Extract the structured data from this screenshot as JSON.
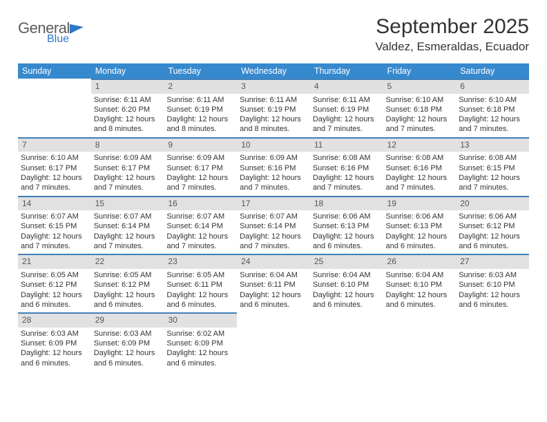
{
  "brand": {
    "general": "General",
    "blue": "Blue"
  },
  "title": "September 2025",
  "location": "Valdez, Esmeraldas, Ecuador",
  "colors": {
    "header_bg": "#3789ce",
    "daynum_bg": "#e1e1e1",
    "daynum_border": "#3e7fb8",
    "text": "#333333",
    "logo_gray": "#5b5b5b",
    "logo_blue": "#2f78c4",
    "page_bg": "#ffffff"
  },
  "typography": {
    "title_fontsize": 30,
    "location_fontsize": 17,
    "dayheader_fontsize": 12.5,
    "cell_fontsize": 11
  },
  "day_headers": [
    "Sunday",
    "Monday",
    "Tuesday",
    "Wednesday",
    "Thursday",
    "Friday",
    "Saturday"
  ],
  "weeks": [
    [
      {
        "n": "",
        "sr": "",
        "ss": "",
        "dl": ""
      },
      {
        "n": "1",
        "sr": "Sunrise: 6:11 AM",
        "ss": "Sunset: 6:20 PM",
        "dl": "Daylight: 12 hours and 8 minutes."
      },
      {
        "n": "2",
        "sr": "Sunrise: 6:11 AM",
        "ss": "Sunset: 6:19 PM",
        "dl": "Daylight: 12 hours and 8 minutes."
      },
      {
        "n": "3",
        "sr": "Sunrise: 6:11 AM",
        "ss": "Sunset: 6:19 PM",
        "dl": "Daylight: 12 hours and 8 minutes."
      },
      {
        "n": "4",
        "sr": "Sunrise: 6:11 AM",
        "ss": "Sunset: 6:19 PM",
        "dl": "Daylight: 12 hours and 7 minutes."
      },
      {
        "n": "5",
        "sr": "Sunrise: 6:10 AM",
        "ss": "Sunset: 6:18 PM",
        "dl": "Daylight: 12 hours and 7 minutes."
      },
      {
        "n": "6",
        "sr": "Sunrise: 6:10 AM",
        "ss": "Sunset: 6:18 PM",
        "dl": "Daylight: 12 hours and 7 minutes."
      }
    ],
    [
      {
        "n": "7",
        "sr": "Sunrise: 6:10 AM",
        "ss": "Sunset: 6:17 PM",
        "dl": "Daylight: 12 hours and 7 minutes."
      },
      {
        "n": "8",
        "sr": "Sunrise: 6:09 AM",
        "ss": "Sunset: 6:17 PM",
        "dl": "Daylight: 12 hours and 7 minutes."
      },
      {
        "n": "9",
        "sr": "Sunrise: 6:09 AM",
        "ss": "Sunset: 6:17 PM",
        "dl": "Daylight: 12 hours and 7 minutes."
      },
      {
        "n": "10",
        "sr": "Sunrise: 6:09 AM",
        "ss": "Sunset: 6:16 PM",
        "dl": "Daylight: 12 hours and 7 minutes."
      },
      {
        "n": "11",
        "sr": "Sunrise: 6:08 AM",
        "ss": "Sunset: 6:16 PM",
        "dl": "Daylight: 12 hours and 7 minutes."
      },
      {
        "n": "12",
        "sr": "Sunrise: 6:08 AM",
        "ss": "Sunset: 6:16 PM",
        "dl": "Daylight: 12 hours and 7 minutes."
      },
      {
        "n": "13",
        "sr": "Sunrise: 6:08 AM",
        "ss": "Sunset: 6:15 PM",
        "dl": "Daylight: 12 hours and 7 minutes."
      }
    ],
    [
      {
        "n": "14",
        "sr": "Sunrise: 6:07 AM",
        "ss": "Sunset: 6:15 PM",
        "dl": "Daylight: 12 hours and 7 minutes."
      },
      {
        "n": "15",
        "sr": "Sunrise: 6:07 AM",
        "ss": "Sunset: 6:14 PM",
        "dl": "Daylight: 12 hours and 7 minutes."
      },
      {
        "n": "16",
        "sr": "Sunrise: 6:07 AM",
        "ss": "Sunset: 6:14 PM",
        "dl": "Daylight: 12 hours and 7 minutes."
      },
      {
        "n": "17",
        "sr": "Sunrise: 6:07 AM",
        "ss": "Sunset: 6:14 PM",
        "dl": "Daylight: 12 hours and 7 minutes."
      },
      {
        "n": "18",
        "sr": "Sunrise: 6:06 AM",
        "ss": "Sunset: 6:13 PM",
        "dl": "Daylight: 12 hours and 6 minutes."
      },
      {
        "n": "19",
        "sr": "Sunrise: 6:06 AM",
        "ss": "Sunset: 6:13 PM",
        "dl": "Daylight: 12 hours and 6 minutes."
      },
      {
        "n": "20",
        "sr": "Sunrise: 6:06 AM",
        "ss": "Sunset: 6:12 PM",
        "dl": "Daylight: 12 hours and 6 minutes."
      }
    ],
    [
      {
        "n": "21",
        "sr": "Sunrise: 6:05 AM",
        "ss": "Sunset: 6:12 PM",
        "dl": "Daylight: 12 hours and 6 minutes."
      },
      {
        "n": "22",
        "sr": "Sunrise: 6:05 AM",
        "ss": "Sunset: 6:12 PM",
        "dl": "Daylight: 12 hours and 6 minutes."
      },
      {
        "n": "23",
        "sr": "Sunrise: 6:05 AM",
        "ss": "Sunset: 6:11 PM",
        "dl": "Daylight: 12 hours and 6 minutes."
      },
      {
        "n": "24",
        "sr": "Sunrise: 6:04 AM",
        "ss": "Sunset: 6:11 PM",
        "dl": "Daylight: 12 hours and 6 minutes."
      },
      {
        "n": "25",
        "sr": "Sunrise: 6:04 AM",
        "ss": "Sunset: 6:10 PM",
        "dl": "Daylight: 12 hours and 6 minutes."
      },
      {
        "n": "26",
        "sr": "Sunrise: 6:04 AM",
        "ss": "Sunset: 6:10 PM",
        "dl": "Daylight: 12 hours and 6 minutes."
      },
      {
        "n": "27",
        "sr": "Sunrise: 6:03 AM",
        "ss": "Sunset: 6:10 PM",
        "dl": "Daylight: 12 hours and 6 minutes."
      }
    ],
    [
      {
        "n": "28",
        "sr": "Sunrise: 6:03 AM",
        "ss": "Sunset: 6:09 PM",
        "dl": "Daylight: 12 hours and 6 minutes."
      },
      {
        "n": "29",
        "sr": "Sunrise: 6:03 AM",
        "ss": "Sunset: 6:09 PM",
        "dl": "Daylight: 12 hours and 6 minutes."
      },
      {
        "n": "30",
        "sr": "Sunrise: 6:02 AM",
        "ss": "Sunset: 6:09 PM",
        "dl": "Daylight: 12 hours and 6 minutes."
      },
      {
        "n": "",
        "sr": "",
        "ss": "",
        "dl": ""
      },
      {
        "n": "",
        "sr": "",
        "ss": "",
        "dl": ""
      },
      {
        "n": "",
        "sr": "",
        "ss": "",
        "dl": ""
      },
      {
        "n": "",
        "sr": "",
        "ss": "",
        "dl": ""
      }
    ]
  ]
}
